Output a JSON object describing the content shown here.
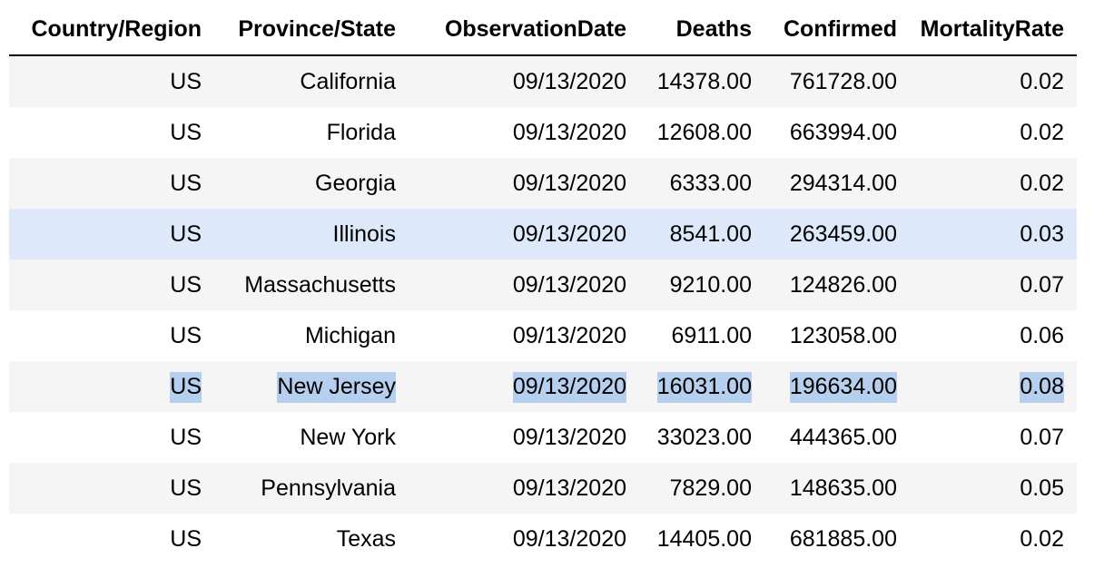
{
  "table": {
    "columns": [
      "Country/Region",
      "Province/State",
      "ObservationDate",
      "Deaths",
      "Confirmed",
      "MortalityRate"
    ],
    "rows": [
      [
        "US",
        "California",
        "09/13/2020",
        "14378.00",
        "761728.00",
        "0.02"
      ],
      [
        "US",
        "Florida",
        "09/13/2020",
        "12608.00",
        "663994.00",
        "0.02"
      ],
      [
        "US",
        "Georgia",
        "09/13/2020",
        "6333.00",
        "294314.00",
        "0.02"
      ],
      [
        "US",
        "Illinois",
        "09/13/2020",
        "8541.00",
        "263459.00",
        "0.03"
      ],
      [
        "US",
        "Massachusetts",
        "09/13/2020",
        "9210.00",
        "124826.00",
        "0.07"
      ],
      [
        "US",
        "Michigan",
        "09/13/2020",
        "6911.00",
        "123058.00",
        "0.06"
      ],
      [
        "US",
        "New Jersey",
        "09/13/2020",
        "16031.00",
        "196634.00",
        "0.08"
      ],
      [
        "US",
        "New York",
        "09/13/2020",
        "33023.00",
        "444365.00",
        "0.07"
      ],
      [
        "US",
        "Pennsylvania",
        "09/13/2020",
        "7829.00",
        "148635.00",
        "0.05"
      ],
      [
        "US",
        "Texas",
        "09/13/2020",
        "14405.00",
        "681885.00",
        "0.02"
      ]
    ],
    "hovered_row_index": 3,
    "selected_row_index": 6
  },
  "colors": {
    "striped_row": "#f5f5f5",
    "hover_row": "#dde9fb",
    "text_selection": "#b7cfee"
  }
}
